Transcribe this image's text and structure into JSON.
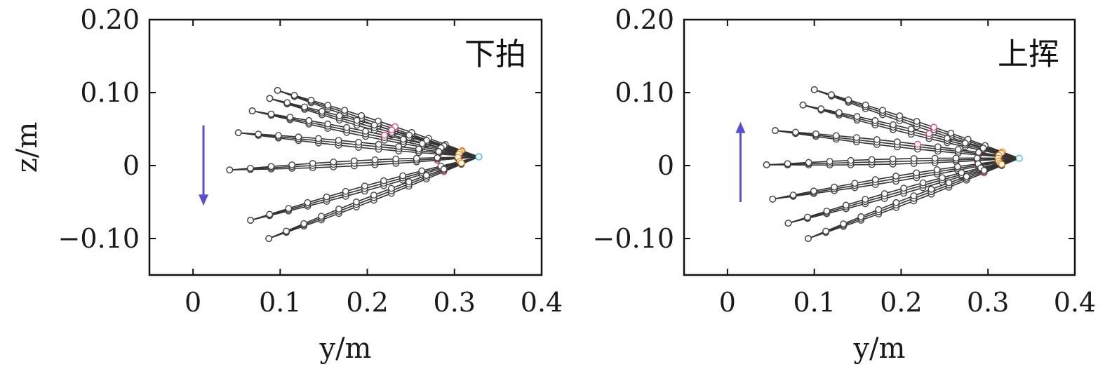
{
  "chart_data": [
    {
      "type": "line",
      "panel_label": "下拍",
      "xlabel": "y/m",
      "ylabel": "z/m",
      "xlim": [
        -0.05,
        0.4
      ],
      "ylim": [
        -0.15,
        0.2
      ],
      "xticks": [
        0,
        0.1,
        0.2,
        0.3,
        0.4
      ],
      "xtick_labels": [
        "0",
        "0.1",
        "0.2",
        "0.3",
        "0.4"
      ],
      "yticks": [
        -0.1,
        0,
        0.1,
        0.2
      ],
      "ytick_labels": [
        "−0.10",
        "0",
        "0.10",
        "0.20"
      ],
      "grid": false,
      "arrow": {
        "direction": "down",
        "x": 0.012,
        "y_from": 0.055,
        "y_to": -0.055,
        "color": "#5a4fcf"
      },
      "root": [
        0.328,
        0.012
      ],
      "tips": [
        [
          0.097,
          0.103
        ],
        [
          0.088,
          0.092
        ],
        [
          0.068,
          0.075
        ],
        [
          0.052,
          0.045
        ],
        [
          0.042,
          -0.006
        ],
        [
          0.066,
          -0.075
        ],
        [
          0.087,
          -0.1
        ]
      ],
      "accent_colors": [
        "#3d6fd0",
        "#e0467a",
        "#f08a24",
        "#5bc0de"
      ]
    },
    {
      "type": "line",
      "panel_label": "上挥",
      "xlabel": "y/m",
      "ylabel": "",
      "xlim": [
        -0.05,
        0.4
      ],
      "ylim": [
        -0.15,
        0.2
      ],
      "xticks": [
        0,
        0.1,
        0.2,
        0.3,
        0.4
      ],
      "xtick_labels": [
        "0",
        "0.1",
        "0.2",
        "0.3",
        "0.4"
      ],
      "yticks": [
        -0.1,
        0,
        0.1,
        0.2
      ],
      "ytick_labels": [
        "−0.10",
        "0",
        "0.10",
        "0.20"
      ],
      "grid": false,
      "arrow": {
        "direction": "up",
        "x": 0.015,
        "y_from": -0.05,
        "y_to": 0.06,
        "color": "#5a4fcf"
      },
      "root": [
        0.336,
        0.01
      ],
      "tips": [
        [
          0.1,
          0.104
        ],
        [
          0.087,
          0.083
        ],
        [
          0.055,
          0.048
        ],
        [
          0.045,
          0.001
        ],
        [
          0.052,
          -0.046
        ],
        [
          0.07,
          -0.079
        ],
        [
          0.093,
          -0.1
        ]
      ],
      "accent_colors": [
        "#3d6fd0",
        "#e0467a",
        "#f08a24",
        "#5bc0de"
      ]
    }
  ]
}
